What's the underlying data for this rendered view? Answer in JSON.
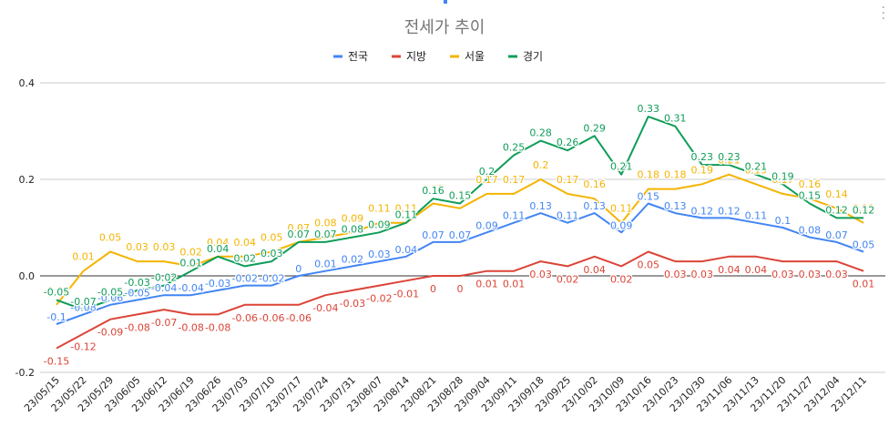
{
  "chart_data": {
    "type": "line",
    "title": "전세가 추이",
    "legend_position": "top",
    "ylim": [
      -0.2,
      0.4
    ],
    "yticks": [
      "0.4",
      "0.2",
      "0.0",
      "-0.2"
    ],
    "grid": true,
    "categories": [
      "23/05/15",
      "23/05/22",
      "23/05/29",
      "23/06/05",
      "23/06/12",
      "23/06/19",
      "23/06/26",
      "23/07/03",
      "23/07/10",
      "23/07/17",
      "23/07/24",
      "23/07/31",
      "23/08/07",
      "23/08/14",
      "23/08/21",
      "23/08/28",
      "23/09/04",
      "23/09/11",
      "23/09/18",
      "23/09/25",
      "23/10/02",
      "23/10/09",
      "23/10/16",
      "23/10/23",
      "23/10/30",
      "23/11/06",
      "23/11/13",
      "23/11/20",
      "23/11/27",
      "23/12/04",
      "23/12/11"
    ],
    "series": [
      {
        "name": "전국",
        "color": "#4285f4",
        "values": [
          -0.1,
          -0.08,
          -0.06,
          -0.05,
          -0.04,
          -0.04,
          -0.03,
          -0.02,
          -0.02,
          0,
          0.01,
          0.02,
          0.03,
          0.04,
          0.07,
          0.07,
          0.09,
          0.11,
          0.13,
          0.11,
          0.13,
          0.09,
          0.15,
          0.13,
          0.12,
          0.12,
          0.11,
          0.1,
          0.08,
          0.07,
          0.05
        ]
      },
      {
        "name": "지방",
        "color": "#db4437",
        "values": [
          -0.15,
          -0.12,
          -0.09,
          -0.08,
          -0.07,
          -0.08,
          -0.08,
          -0.06,
          -0.06,
          -0.06,
          -0.04,
          -0.03,
          -0.02,
          -0.01,
          0,
          0,
          0.01,
          0.01,
          0.03,
          0.02,
          0.04,
          0.02,
          0.05,
          0.03,
          0.03,
          0.04,
          0.04,
          0.03,
          0.03,
          0.03,
          0.01
        ]
      },
      {
        "name": "서울",
        "color": "#f4b400",
        "values": [
          -0.06,
          0.01,
          0.05,
          0.03,
          0.03,
          0.02,
          0.04,
          0.04,
          0.05,
          0.07,
          0.08,
          0.09,
          0.11,
          0.11,
          0.15,
          0.14,
          0.17,
          0.17,
          0.2,
          0.17,
          0.16,
          0.11,
          0.18,
          0.18,
          0.19,
          0.21,
          0.19,
          0.17,
          0.16,
          0.14,
          0.11
        ]
      },
      {
        "name": "경기",
        "color": "#0f9d58",
        "values": [
          -0.05,
          -0.07,
          -0.05,
          -0.03,
          -0.02,
          0.01,
          0.04,
          0.02,
          0.03,
          0.07,
          0.07,
          0.08,
          0.09,
          0.11,
          0.16,
          0.15,
          0.2,
          0.25,
          0.28,
          0.26,
          0.29,
          0.21,
          0.33,
          0.31,
          0.23,
          0.23,
          0.21,
          0.19,
          0.15,
          0.12,
          0.12
        ]
      }
    ]
  }
}
